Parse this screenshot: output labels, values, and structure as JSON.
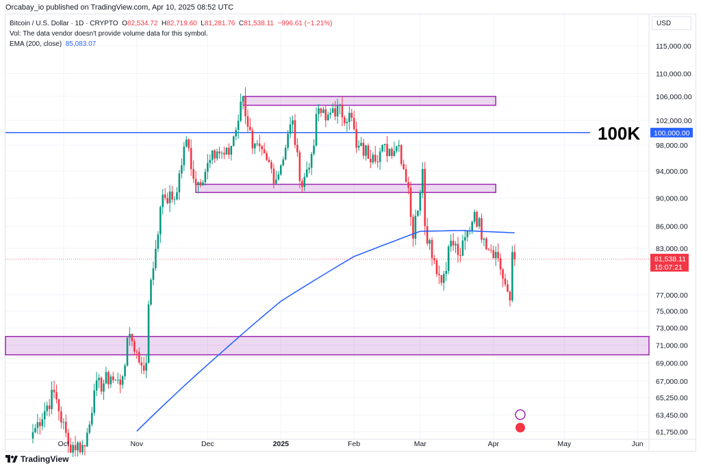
{
  "header": {
    "published": "Orcabay_io published on TradingView.com, Apr 10, 2025 08:52 UTC"
  },
  "legend": {
    "symbol": "Bitcoin / U.S. Dollar · 1D · CRYPTO",
    "o_label": "O",
    "o": "82,534.72",
    "h_label": "H",
    "h": "82,719.60",
    "l_label": "L",
    "l": "81,281.76",
    "c_label": "C",
    "c": "81,538.11",
    "change": "−996.61 (−1.21%)",
    "vol": "Vol: The data vendor doesn't provide volume data for this symbol.",
    "ema_label": "EMA (200, close)",
    "ema_value": "85,083.07"
  },
  "currency": "USD",
  "brand": "TradingView",
  "annotation": "100K",
  "colors": {
    "up": "#089981",
    "down": "#f23645",
    "ema": "#2962ff",
    "zone": "#9c27b0",
    "level": "#2962ff"
  },
  "chart_data": {
    "type": "candlestick",
    "scale": "log",
    "start_date": "2024-09-18",
    "y_ticks": [
      115000,
      110000,
      106000,
      102000,
      98000,
      94000,
      90000,
      86000,
      83000,
      77000,
      75000,
      73000,
      71000,
      69000,
      67000,
      65250,
      63450,
      61750
    ],
    "y_tick_labels": [
      "115,000.00",
      "110,000.00",
      "106,000.00",
      "102,000.00",
      "98,000.00",
      "94,000.00",
      "90,000.00",
      "86,000.00",
      "83,000.00",
      "77,000.00",
      "75,000.00",
      "73,000.00",
      "71,000.00",
      "69,000.00",
      "67,000.00",
      "65,250.00",
      "63,450.00",
      "61,750.00"
    ],
    "x_ticks": [
      {
        "label": "Oct",
        "day": 13
      },
      {
        "label": "Nov",
        "day": 44
      },
      {
        "label": "Dec",
        "day": 74
      },
      {
        "label": "2025",
        "day": 105
      },
      {
        "label": "Feb",
        "day": 136
      },
      {
        "label": "Mar",
        "day": 164
      },
      {
        "label": "Apr",
        "day": 195
      },
      {
        "label": "May",
        "day": 225
      },
      {
        "label": "Jun",
        "day": 256
      }
    ],
    "close_keypoints": [
      [
        0,
        61700
      ],
      [
        9,
        65800
      ],
      [
        15,
        60500
      ],
      [
        22,
        60300
      ],
      [
        26,
        66000
      ],
      [
        33,
        67500
      ],
      [
        37,
        66600
      ],
      [
        41,
        72300
      ],
      [
        46,
        68700
      ],
      [
        48,
        69000
      ],
      [
        49,
        75800
      ],
      [
        54,
        88700
      ],
      [
        56,
        90000
      ],
      [
        60,
        89800
      ],
      [
        65,
        98900
      ],
      [
        69,
        91900
      ],
      [
        78,
        97000
      ],
      [
        83,
        96500
      ],
      [
        89,
        106000
      ],
      [
        93,
        97500
      ],
      [
        99,
        95700
      ],
      [
        103,
        92700
      ],
      [
        110,
        102000
      ],
      [
        113,
        92500
      ],
      [
        117,
        94500
      ],
      [
        121,
        104000
      ],
      [
        124,
        102000
      ],
      [
        127,
        104000
      ],
      [
        135,
        102400
      ],
      [
        137,
        97600
      ],
      [
        144,
        96500
      ],
      [
        155,
        98000
      ],
      [
        159,
        91500
      ],
      [
        161,
        84300
      ],
      [
        165,
        94300
      ],
      [
        166,
        86000
      ],
      [
        173,
        78500
      ],
      [
        177,
        84000
      ],
      [
        181,
        82000
      ],
      [
        187,
        88000
      ],
      [
        191,
        84300
      ],
      [
        196,
        82500
      ],
      [
        200,
        78300
      ],
      [
        202,
        76300
      ],
      [
        203,
        82500
      ],
      [
        204,
        81538
      ]
    ],
    "ema200": {
      "label": "EMA (200, close)",
      "points": [
        [
          44,
          61800
        ],
        [
          80,
          70200
        ],
        [
          105,
          76200
        ],
        [
          136,
          81900
        ],
        [
          164,
          85300
        ],
        [
          182,
          85400
        ],
        [
          204,
          85083
        ]
      ]
    },
    "horizontal_level": {
      "price": 100000,
      "label": "100,000.00"
    },
    "zones": [
      {
        "from_day": 89,
        "to_day": 196,
        "low": 104500,
        "high": 106000
      },
      {
        "from_day": 69,
        "to_day": 196,
        "low": 90800,
        "high": 92000
      },
      {
        "from_day": -12,
        "to_day": 262,
        "low": 69900,
        "high": 72000
      }
    ],
    "last_price": {
      "label": "81,538.11",
      "countdown": "15:07:21"
    }
  }
}
